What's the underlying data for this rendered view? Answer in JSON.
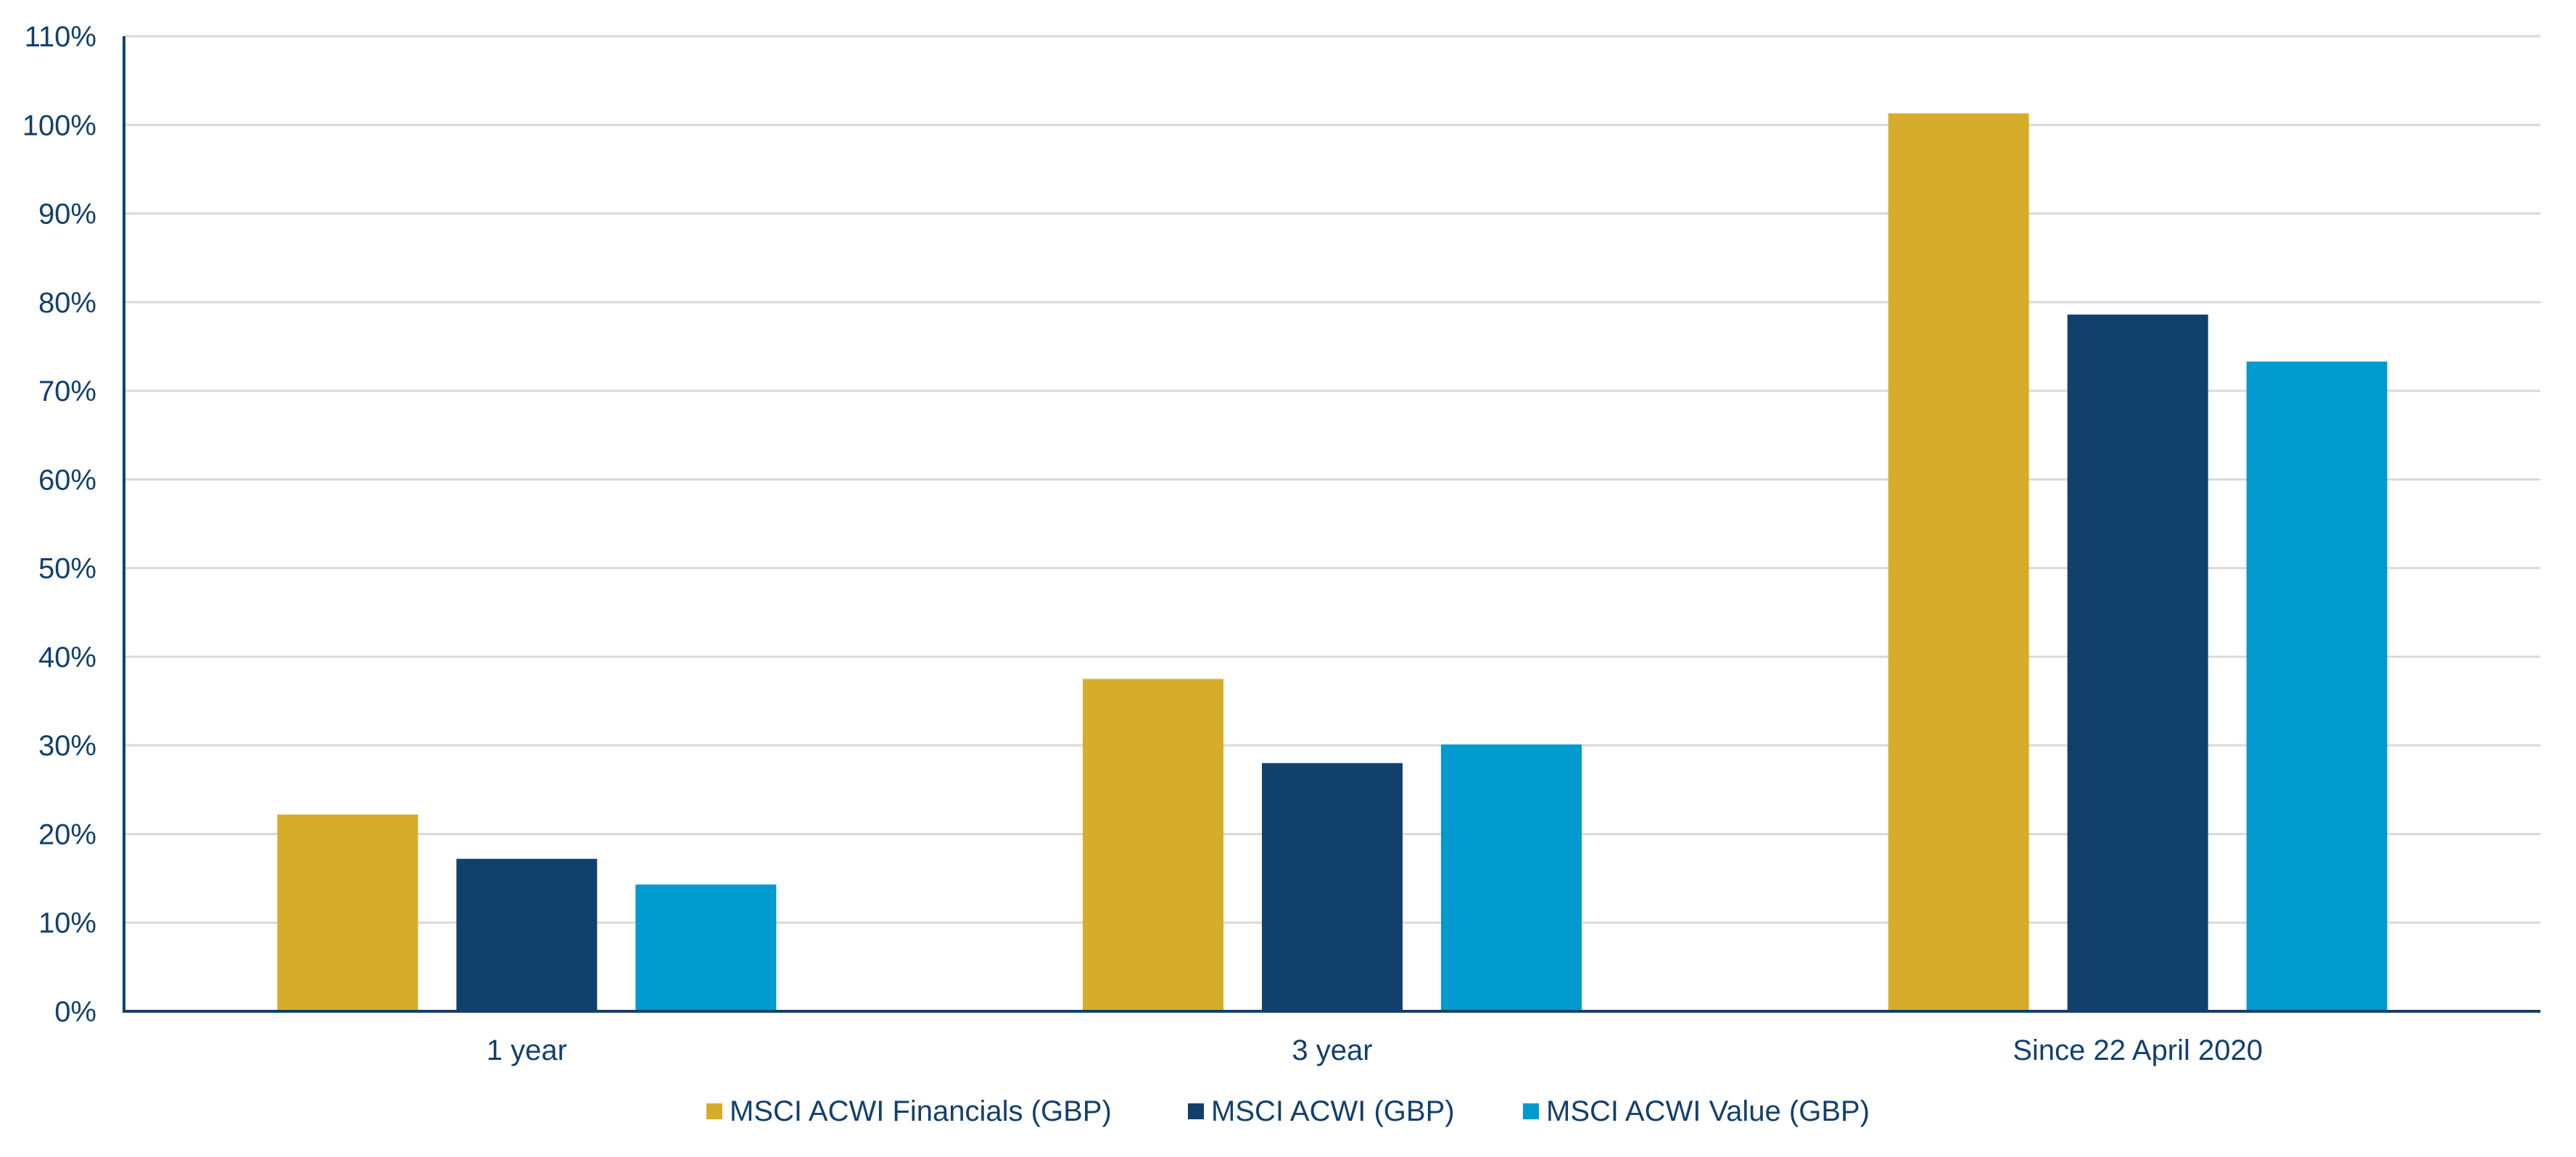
{
  "chart_data": {
    "type": "bar",
    "title": "",
    "xlabel": "",
    "ylabel": "",
    "categories": [
      "1 year",
      "3 year",
      "Since 22 April 2020"
    ],
    "series": [
      {
        "name": "MSCI ACWI Financials (GBP)",
        "color": "#d6ad2b",
        "values": [
          22.2,
          37.5,
          101.3
        ]
      },
      {
        "name": "MSCI ACWI (GBP)",
        "color": "#12406d",
        "values": [
          17.2,
          28.0,
          78.6
        ]
      },
      {
        "name": "MSCI ACWI Value (GBP)",
        "color": "#009ace",
        "values": [
          14.3,
          30.1,
          73.3
        ]
      }
    ],
    "ylim": [
      0,
      110
    ],
    "yticks": [
      0,
      10,
      20,
      30,
      40,
      50,
      60,
      70,
      80,
      90,
      100,
      110
    ],
    "ytick_labels": [
      "0%",
      "10%",
      "20%",
      "30%",
      "40%",
      "50%",
      "60%",
      "70%",
      "80%",
      "90%",
      "100%",
      "110%"
    ],
    "grid": true,
    "legend_position": "bottom-center",
    "colors": {
      "axis": "#12406d",
      "grid": "#d9d9d9",
      "text": "#12406d"
    }
  }
}
